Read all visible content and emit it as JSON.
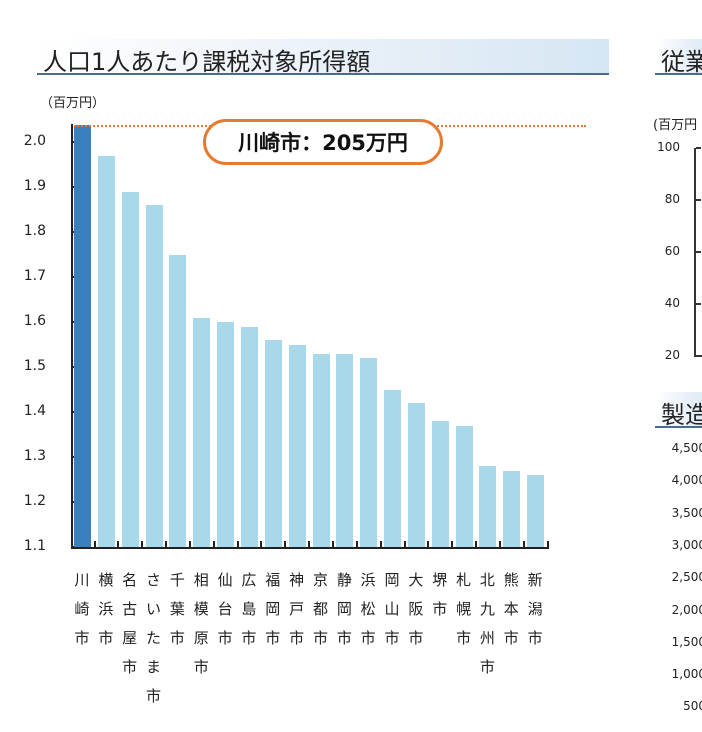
{
  "left_panel": {
    "title": "人口1人あたり課税対象所得額",
    "unit": "（百万円）",
    "callout": "川崎市：205万円"
  },
  "right_panel": {
    "title_partial": "従業",
    "unit_partial": "(百万円",
    "yticks": [
      "100",
      "80",
      "60",
      "40",
      "20"
    ],
    "second_title_partial": "製造",
    "second_yticks": [
      "4,500",
      "4,000",
      "3,500",
      "3,000",
      "2,500",
      "2,000",
      "1,500",
      "1,000",
      "500"
    ]
  },
  "chart_data": {
    "type": "bar",
    "title": "人口1人あたり課税対象所得額",
    "ylabel": "（百万円）",
    "xlabel": "",
    "ylim": [
      1.1,
      2.05
    ],
    "yticks": [
      "2.0",
      "1.9",
      "1.8",
      "1.7",
      "1.6",
      "1.5",
      "1.4",
      "1.3",
      "1.2",
      "1.1"
    ],
    "grid": false,
    "categories": [
      "川崎市",
      "横浜市",
      "名古屋市",
      "さいたま市",
      "千葉市",
      "相模原市",
      "仙台市",
      "広島市",
      "福岡市",
      "神戸市",
      "京都市",
      "静岡市",
      "浜松市",
      "岡山市",
      "大阪市",
      "堺市",
      "札幌市",
      "北九州市",
      "熊本市",
      "新潟市"
    ],
    "values": [
      2.05,
      1.97,
      1.89,
      1.86,
      1.75,
      1.61,
      1.6,
      1.59,
      1.56,
      1.55,
      1.53,
      1.53,
      1.52,
      1.45,
      1.42,
      1.38,
      1.37,
      1.28,
      1.27,
      1.26
    ],
    "highlight_index": 0,
    "colors": {
      "highlight": "#3a7fc0",
      "default": "#a8d8ea",
      "reference_line": "#e0783a"
    },
    "annotations": [
      {
        "text": "川崎市：205万円",
        "reference_value": 2.05
      }
    ]
  }
}
